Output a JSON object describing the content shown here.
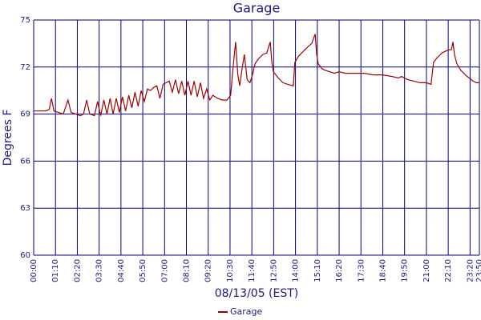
{
  "chart_data": {
    "type": "line",
    "title": "Garage",
    "x_label": "08/13/05 (EST)",
    "y_label": "Degrees F",
    "x": [
      0,
      10,
      20,
      30,
      40,
      50,
      57,
      65,
      80,
      95,
      110,
      120,
      135,
      150,
      160,
      170,
      180,
      195,
      205,
      215,
      225,
      235,
      245,
      255,
      265,
      275,
      285,
      295,
      305,
      315,
      325,
      335,
      345,
      355,
      365,
      375,
      385,
      395,
      405,
      415,
      425,
      435,
      445,
      455,
      465,
      475,
      485,
      495,
      505,
      515,
      525,
      535,
      545,
      555,
      565,
      575,
      590,
      605,
      620,
      632,
      640,
      648,
      655,
      661,
      668,
      676,
      685,
      694,
      702,
      710,
      720,
      735,
      748,
      759,
      764,
      769,
      785,
      800,
      815,
      833,
      838,
      850,
      865,
      880,
      892,
      903,
      908,
      913,
      925,
      934,
      950,
      965,
      980,
      1000,
      1030,
      1060,
      1090,
      1120,
      1150,
      1170,
      1180,
      1200,
      1220,
      1240,
      1260,
      1275,
      1283,
      1295,
      1310,
      1320,
      1332,
      1340,
      1345,
      1350,
      1358,
      1370,
      1385,
      1397,
      1410,
      1420,
      1430
    ],
    "series": [
      {
        "name": "Garage",
        "color": "#a00000",
        "values": [
          69.2,
          69.2,
          69.2,
          69.2,
          69.2,
          69.3,
          70.0,
          69.2,
          69.1,
          69.0,
          69.9,
          69.1,
          69.0,
          68.9,
          69.0,
          69.9,
          69.0,
          68.9,
          69.8,
          68.9,
          69.9,
          69.0,
          70.0,
          69.0,
          70.0,
          69.1,
          70.1,
          69.2,
          70.2,
          69.4,
          70.4,
          69.5,
          70.5,
          69.8,
          70.6,
          70.5,
          70.7,
          70.8,
          70.0,
          70.9,
          71.0,
          71.1,
          70.4,
          71.2,
          70.3,
          71.1,
          70.2,
          71.1,
          70.2,
          71.1,
          70.1,
          71.0,
          70.0,
          70.6,
          69.9,
          70.2,
          70.0,
          69.9,
          69.9,
          70.2,
          72.0,
          73.6,
          71.5,
          70.8,
          71.8,
          72.8,
          71.2,
          71.0,
          71.5,
          72.2,
          72.5,
          72.8,
          72.9,
          73.6,
          72.3,
          71.7,
          71.3,
          71.0,
          70.9,
          70.8,
          72.3,
          72.7,
          73.0,
          73.3,
          73.5,
          74.1,
          72.8,
          72.2,
          71.9,
          71.8,
          71.7,
          71.6,
          71.7,
          71.6,
          71.6,
          71.6,
          71.5,
          71.5,
          71.4,
          71.3,
          71.4,
          71.2,
          71.1,
          71.0,
          71.0,
          70.9,
          72.3,
          72.6,
          72.9,
          73.0,
          73.1,
          73.1,
          73.6,
          72.8,
          72.2,
          71.8,
          71.5,
          71.3,
          71.1,
          71.0,
          71.0
        ]
      }
    ],
    "xlim": [
      0,
      1430
    ],
    "xticks": [
      {
        "value": 0,
        "label": "00:00"
      },
      {
        "value": 70,
        "label": "01:10"
      },
      {
        "value": 140,
        "label": "02:20"
      },
      {
        "value": 210,
        "label": "03:30"
      },
      {
        "value": 280,
        "label": "04:40"
      },
      {
        "value": 350,
        "label": "05:50"
      },
      {
        "value": 420,
        "label": "07:00"
      },
      {
        "value": 490,
        "label": "08:10"
      },
      {
        "value": 560,
        "label": "09:20"
      },
      {
        "value": 630,
        "label": "10:30"
      },
      {
        "value": 700,
        "label": "11:40"
      },
      {
        "value": 770,
        "label": "12:50"
      },
      {
        "value": 840,
        "label": "14:00"
      },
      {
        "value": 910,
        "label": "15:10"
      },
      {
        "value": 980,
        "label": "16:20"
      },
      {
        "value": 1050,
        "label": "17:30"
      },
      {
        "value": 1120,
        "label": "18:40"
      },
      {
        "value": 1190,
        "label": "19:50"
      },
      {
        "value": 1260,
        "label": "21:00"
      },
      {
        "value": 1330,
        "label": "22:10"
      },
      {
        "value": 1400,
        "label": "23:20"
      },
      {
        "value": 1430,
        "label": "23:50"
      }
    ],
    "ylim": [
      60,
      75
    ],
    "yticks": [
      60,
      63,
      66,
      69,
      72,
      75
    ],
    "grid": true,
    "legend": "bottom"
  }
}
